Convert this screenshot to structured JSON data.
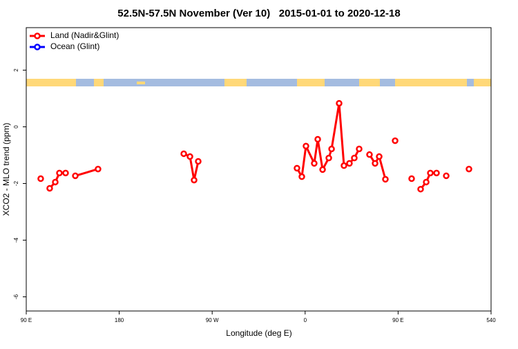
{
  "chart_data": {
    "type": "line",
    "title": "52.5N-57.5N November (Ver 10)   2015-01-01 to 2020-12-18",
    "xlabel": "Longitude (deg E)",
    "ylabel": "XCO2 - MLO trend (ppm)",
    "xlim": [
      90,
      540
    ],
    "ylim": [
      -6.5,
      3.5
    ],
    "xticks": [
      {
        "value": 90,
        "label": "90 E"
      },
      180,
      {
        "value": 270,
        "label": "90 W"
      },
      {
        "value": 360,
        "label": "0"
      },
      {
        "value": 450,
        "label": "90 E"
      },
      540
    ],
    "yticks": [
      -6,
      -4,
      -2,
      0,
      2
    ],
    "legend": "top-left",
    "series": [
      {
        "name": "Land (Nadir&Glint)",
        "color": "#ff0000",
        "x": [
          104.0,
          null,
          112.7,
          118.1,
          122.1,
          128.1,
          null,
          137.5,
          159.5,
          null,
          242.5,
          248.5,
          252.5,
          256.5,
          null,
          352.1,
          356.8,
          360.8,
          368.8,
          372.2,
          376.9,
          382.9,
          385.6,
          392.9,
          397.6,
          402.9,
          407.6,
          412.3,
          null,
          422.3,
          427.7,
          431.7,
          437.7,
          null,
          447.1,
          null,
          463.1,
          null,
          471.8,
          477.2,
          481.2,
          487.2,
          null,
          496.6,
          null,
          518.6
        ],
        "values": [
          -1.83,
          null,
          -2.17,
          -1.95,
          -1.63,
          -1.63,
          null,
          -1.73,
          -1.49,
          null,
          -0.95,
          -1.05,
          -1.88,
          -1.22,
          null,
          -1.46,
          -1.76,
          -0.68,
          -1.29,
          -0.44,
          -1.51,
          -1.1,
          -0.78,
          0.83,
          -1.37,
          -1.29,
          -1.1,
          -0.78,
          null,
          -0.98,
          -1.29,
          -1.05,
          -1.85,
          null,
          -0.49,
          null,
          -1.83,
          null,
          -2.2,
          -1.95,
          -1.63,
          -1.63,
          null,
          -1.73,
          null,
          -1.49
        ]
      },
      {
        "name": "Ocean (Glint)",
        "color": "#0000ff",
        "x": [],
        "values": []
      }
    ]
  }
}
